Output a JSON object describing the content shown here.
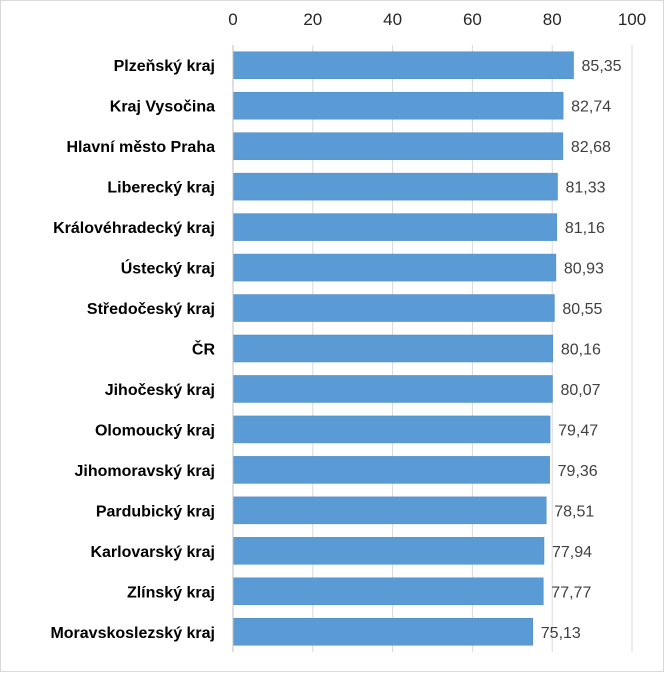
{
  "chart_data": {
    "type": "bar",
    "orientation": "horizontal",
    "xlim": [
      0,
      100
    ],
    "x_ticks": [
      "0",
      "20",
      "40",
      "60",
      "80",
      "100"
    ],
    "x_tick_values": [
      0,
      20,
      40,
      60,
      80,
      100
    ],
    "x_axis_position": "top",
    "grid": true,
    "legend": "none",
    "bar_color": "#5b9bd5",
    "categories": [
      "Plzeňský kraj",
      "Kraj Vysočina",
      "Hlavní město Praha",
      "Liberecký kraj",
      "Královéhradecký kraj",
      "Ústecký kraj",
      "Středočeský kraj",
      "ČR",
      "Jihočeský kraj",
      "Olomoucký kraj",
      "Jihomoravský kraj",
      "Pardubický kraj",
      "Karlovarský kraj",
      "Zlínský kraj",
      "Moravskoslezský kraj"
    ],
    "values": [
      85.35,
      82.74,
      82.68,
      81.33,
      81.16,
      80.93,
      80.55,
      80.16,
      80.07,
      79.47,
      79.36,
      78.51,
      77.94,
      77.77,
      75.13
    ],
    "value_labels": [
      "85,35",
      "82,74",
      "82,68",
      "81,33",
      "81,16",
      "80,93",
      "80,55",
      "80,16",
      "80,07",
      "79,47",
      "79,36",
      "78,51",
      "77,94",
      "77,77",
      "75,13"
    ]
  }
}
